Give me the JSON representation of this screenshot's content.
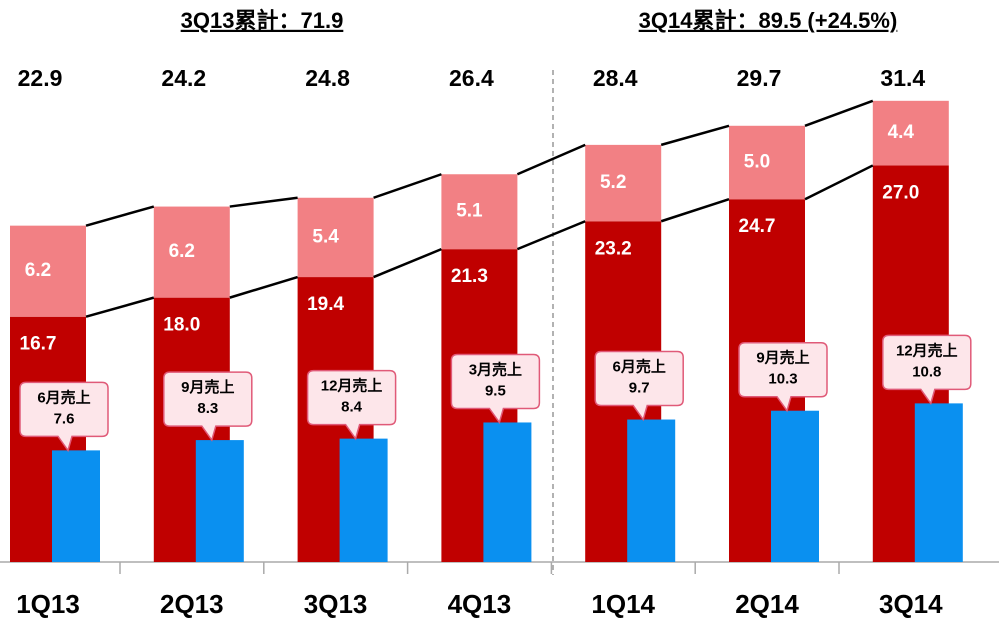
{
  "chart_data": {
    "type": "bar",
    "annotations": [
      "3Q13累計：71.9",
      "3Q14累計：89.5 (+24.5%)"
    ],
    "categories": [
      "1Q13",
      "2Q13",
      "3Q13",
      "4Q13",
      "1Q14",
      "2Q14",
      "3Q14"
    ],
    "totals": [
      22.9,
      24.2,
      24.8,
      26.4,
      28.4,
      29.7,
      31.4
    ],
    "series": [
      {
        "color": "#c00000",
        "values": [
          16.7,
          18.0,
          19.4,
          21.3,
          23.2,
          24.7,
          27.0
        ],
        "value_labels": [
          "16.7",
          "18.0",
          "19.4",
          "21.3",
          "23.2",
          "24.7",
          "27.0"
        ]
      },
      {
        "color": "#f28084",
        "values": [
          6.2,
          6.2,
          5.4,
          5.1,
          5.2,
          5.0,
          4.4
        ],
        "value_labels": [
          "6.2",
          "6.2",
          "5.4",
          "5.1",
          "5.2",
          "5.0",
          "4.4"
        ]
      },
      {
        "color": "#0a90f0",
        "values": [
          7.6,
          8.3,
          8.4,
          9.5,
          9.7,
          10.3,
          10.8
        ],
        "callout_labels": [
          "6月売上",
          "9月売上",
          "12月売上",
          "3月売上",
          "6月売上",
          "9月売上",
          "12月売上"
        ]
      }
    ],
    "ylim": [
      0,
      32
    ]
  }
}
